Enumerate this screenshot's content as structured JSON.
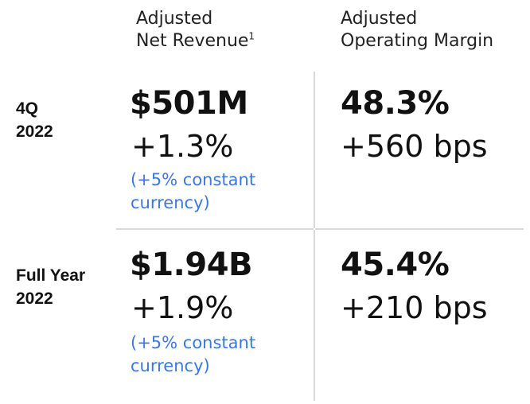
{
  "columns": {
    "revenue": {
      "line1": "Adjusted",
      "line2": "Net Revenue",
      "footnote": "1"
    },
    "margin": {
      "line1": "Adjusted",
      "line2": "Operating Margin"
    }
  },
  "rows": {
    "q4": {
      "label_line1": "4Q",
      "label_line2": "2022",
      "revenue_value": "$501M",
      "revenue_change": "+1.3%",
      "revenue_cc_line1": "(+5% constant",
      "revenue_cc_line2": "currency)",
      "margin_value": "48.3%",
      "margin_change": "+560 bps"
    },
    "full_year": {
      "label_line1": "Full Year",
      "label_line2": "2022",
      "revenue_value": "$1.94B",
      "revenue_change": "+1.9%",
      "revenue_cc_line1": "(+5% constant",
      "revenue_cc_line2": "currency)",
      "margin_value": "45.4%",
      "margin_change": "+210 bps"
    }
  },
  "colors": {
    "text": "#111111",
    "accent_blue": "#3a78e0",
    "divider": "#d9d9d9"
  }
}
